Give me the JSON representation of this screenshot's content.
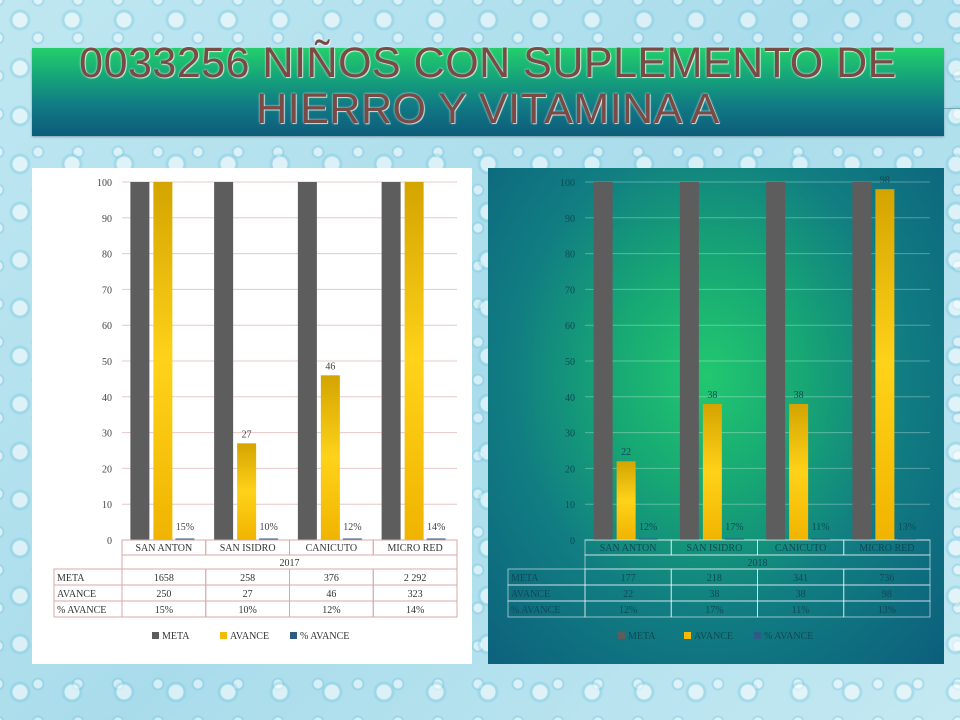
{
  "title": {
    "line1": "0033256 NIÑOS CON SUPLEMENTO DE",
    "line2": "HIERRO Y VITAMINA A"
  },
  "colors": {
    "meta": "#5d5d5d",
    "avance": "#f2bb0a",
    "pct_avance": "#2e5a87"
  },
  "chart_data": [
    {
      "type": "bar",
      "year": "2017",
      "categories": [
        "SAN ANTON",
        "SAN ISIDRO",
        "CANICUTO",
        "MICRO RED"
      ],
      "series": [
        {
          "name": "META",
          "values": [
            100,
            100,
            100,
            100
          ]
        },
        {
          "name": "AVANCE",
          "values": [
            100,
            27,
            46,
            100
          ],
          "labels": [
            "",
            "27",
            "46",
            ""
          ]
        },
        {
          "name": "% AVANCE",
          "values": [
            0,
            0,
            0,
            0
          ],
          "labels": [
            "15%",
            "10%",
            "12%",
            "14%"
          ]
        }
      ],
      "y_ticks": [
        0,
        10,
        20,
        30,
        40,
        50,
        60,
        70,
        80,
        90,
        100
      ],
      "ylim": [
        0,
        100
      ],
      "grid": true,
      "legend_position": "bottom",
      "table": {
        "rows": [
          {
            "label": "META",
            "values": [
              "1658",
              "258",
              "376",
              "2 292"
            ]
          },
          {
            "label": "AVANCE",
            "values": [
              "250",
              "27",
              "46",
              "323"
            ]
          },
          {
            "label": "% AVANCE",
            "values": [
              "15%",
              "10%",
              "12%",
              "14%"
            ]
          }
        ]
      }
    },
    {
      "type": "bar",
      "year": "2018",
      "categories": [
        "SAN ANTON",
        "SAN ISIDRO",
        "CANICUTO",
        "MICRO RED"
      ],
      "series": [
        {
          "name": "META",
          "values": [
            100,
            100,
            100,
            100
          ]
        },
        {
          "name": "AVANCE",
          "values": [
            22,
            38,
            38,
            98
          ],
          "labels": [
            "22",
            "38",
            "38",
            "98"
          ]
        },
        {
          "name": "% AVANCE",
          "values": [
            0,
            0,
            0,
            0
          ],
          "labels": [
            "12%",
            "17%",
            "11%",
            "13%"
          ]
        }
      ],
      "y_ticks": [
        0,
        10,
        20,
        30,
        40,
        50,
        60,
        70,
        80,
        90,
        100
      ],
      "ylim": [
        0,
        100
      ],
      "grid": true,
      "legend_position": "bottom",
      "table": {
        "rows": [
          {
            "label": "META",
            "values": [
              "177",
              "218",
              "341",
              "736"
            ]
          },
          {
            "label": "AVANCE",
            "values": [
              "22",
              "38",
              "38",
              "98"
            ]
          },
          {
            "label": "% AVANCE",
            "values": [
              "12%",
              "17%",
              "11%",
              "13%"
            ]
          }
        ]
      }
    }
  ]
}
